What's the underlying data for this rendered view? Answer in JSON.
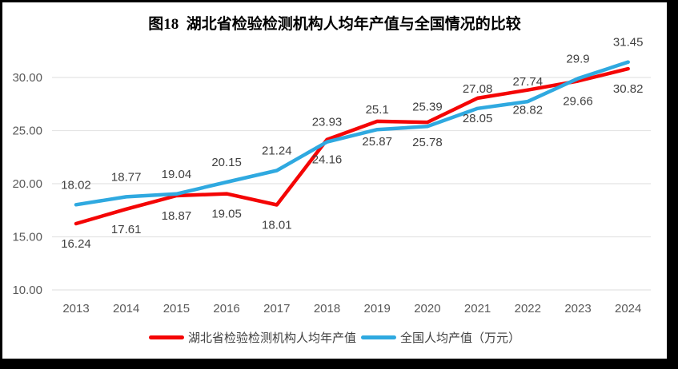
{
  "frame": {
    "background": "#000000",
    "canvas_background": "#ffffff"
  },
  "chart_data": {
    "type": "line",
    "title": "图18  湖北省检验检测机构人均年产值与全国情况的比较",
    "categories": [
      "2013",
      "2014",
      "2015",
      "2016",
      "2017",
      "2018",
      "2019",
      "2020",
      "2021",
      "2022",
      "2023",
      "2024"
    ],
    "series": [
      {
        "name": "湖北省检验检测机构人均年产值",
        "color": "#f40505",
        "label_position": "below",
        "values": [
          16.24,
          17.61,
          18.87,
          19.05,
          18.01,
          24.16,
          25.87,
          25.78,
          28.05,
          28.82,
          29.66,
          30.82
        ]
      },
      {
        "name": "全国人均产值（万元）",
        "color": "#2fa9e0",
        "label_position": "above",
        "values": [
          18.02,
          18.77,
          19.04,
          20.15,
          21.24,
          23.93,
          25.1,
          25.39,
          27.08,
          27.74,
          29.9,
          31.45
        ]
      }
    ],
    "y_axis": {
      "min": 10,
      "max": 30,
      "tick_values": [
        10,
        15,
        20,
        25,
        30
      ],
      "tick_labels": [
        "10.00",
        "15.00",
        "20.00",
        "25.00",
        "30.00"
      ]
    },
    "grid": true,
    "legend_position": "bottom",
    "colors": {
      "gridline": "#e4e4e4",
      "axis_label": "#595959",
      "data_label": "#404040",
      "title": "#000000",
      "legend_text": "#3f3f3f"
    }
  }
}
